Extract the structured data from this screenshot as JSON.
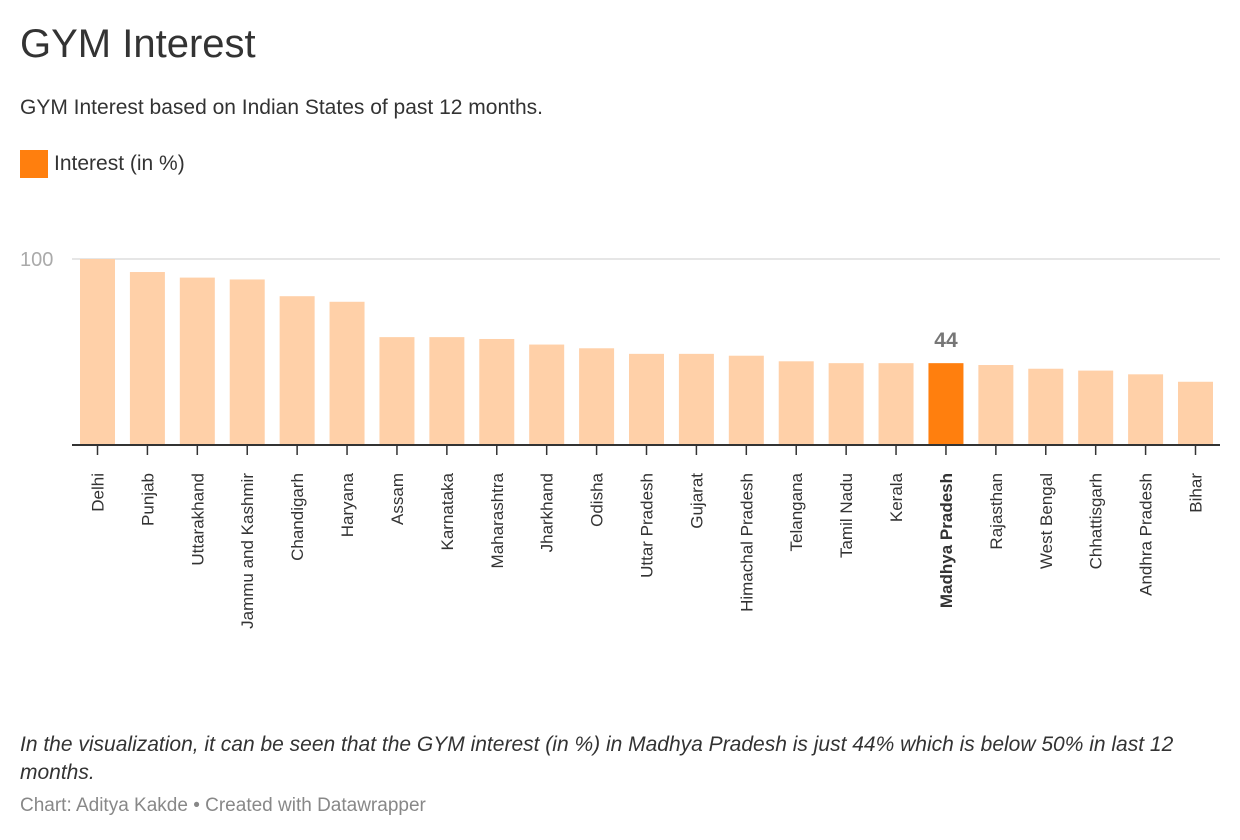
{
  "header": {
    "title": "GYM Interest",
    "subtitle": "GYM Interest based on Indian States of past 12 months."
  },
  "legend": {
    "label": "Interest (in %)",
    "color": "#ff7f0e"
  },
  "footer": {
    "notes": "In the visualization, it can be seen that the GYM interest (in %) in Madhya Pradesh is just 44% which is below 50% in last 12 months.",
    "byline": "Chart: Aditya Kakde • Created with Datawrapper"
  },
  "chart_data": {
    "type": "bar",
    "title": "GYM Interest",
    "subtitle": "GYM Interest based on Indian States of past 12 months.",
    "categories": [
      "Delhi",
      "Punjab",
      "Uttarakhand",
      "Jammu and Kashmir",
      "Chandigarh",
      "Haryana",
      "Assam",
      "Karnataka",
      "Maharashtra",
      "Jharkhand",
      "Odisha",
      "Uttar Pradesh",
      "Gujarat",
      "Himachal Pradesh",
      "Telangana",
      "Tamil Nadu",
      "Kerala",
      "Madhya Pradesh",
      "Rajasthan",
      "West Bengal",
      "Chhattisgarh",
      "Andhra Pradesh",
      "Bihar"
    ],
    "series": [
      {
        "name": "Interest (in %)",
        "values": [
          100,
          93,
          90,
          89,
          80,
          77,
          58,
          58,
          57,
          54,
          52,
          49,
          49,
          48,
          45,
          44,
          44,
          44,
          43,
          41,
          40,
          38,
          34
        ]
      }
    ],
    "highlight": {
      "category": "Madhya Pradesh",
      "value_label": "44"
    },
    "ylim": [
      0,
      100
    ],
    "yticks": [
      100
    ],
    "grid": true,
    "xlabel": "",
    "ylabel": "",
    "colors": {
      "bar": "#ffd0a8",
      "highlight": "#ff7f0e",
      "grid": "#dddddd",
      "axis": "#333333",
      "tick_text": "#aaaaaa",
      "value_label": "#777777"
    }
  }
}
